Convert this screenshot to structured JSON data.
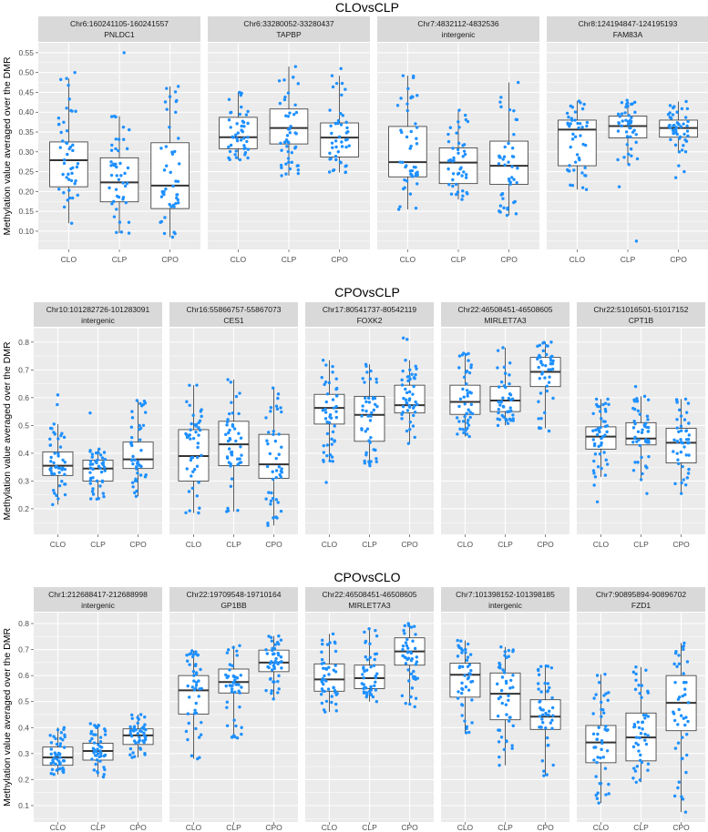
{
  "chart_data": [
    {
      "type": "boxplot",
      "title": "CLOvsCLP",
      "ylabel": "Methylation value averaged over the DMR",
      "categories": [
        "CLO",
        "CLP",
        "CPO"
      ],
      "ylim": [
        0.054,
        0.575
      ],
      "yticks": [
        0.1,
        0.15,
        0.2,
        0.25,
        0.3,
        0.35,
        0.4,
        0.45,
        0.5,
        0.55
      ],
      "ytick_labels": [
        "0.10",
        "0.15",
        "0.20",
        "0.25",
        "0.30",
        "0.35",
        "0.40",
        "0.45",
        "0.50",
        "0.55"
      ],
      "facets": [
        {
          "region": "Chr6:160241105-160241557",
          "gene": "PNLDC1",
          "boxes": [
            {
              "lo": 0.12,
              "q1": 0.212,
              "median": 0.279,
              "q3": 0.325,
              "hi": 0.485,
              "outliers": [
                0.5
              ]
            },
            {
              "lo": 0.095,
              "q1": 0.174,
              "median": 0.223,
              "q3": 0.285,
              "hi": 0.39,
              "outliers": [
                0.55
              ]
            },
            {
              "lo": 0.085,
              "q1": 0.157,
              "median": 0.215,
              "q3": 0.323,
              "hi": 0.465,
              "outliers": []
            }
          ]
        },
        {
          "region": "Chr6:33280052-33280437",
          "gene": "TAPBP",
          "boxes": [
            {
              "lo": 0.28,
              "q1": 0.308,
              "median": 0.337,
              "q3": 0.387,
              "hi": 0.45,
              "outliers": []
            },
            {
              "lo": 0.24,
              "q1": 0.32,
              "median": 0.36,
              "q3": 0.408,
              "hi": 0.515,
              "outliers": []
            },
            {
              "lo": 0.248,
              "q1": 0.287,
              "median": 0.336,
              "q3": 0.373,
              "hi": 0.492,
              "outliers": [
                0.51
              ]
            }
          ]
        },
        {
          "region": "Chr7:4832112-4832536",
          "gene": "intergenic",
          "boxes": [
            {
              "lo": 0.155,
              "q1": 0.237,
              "median": 0.274,
              "q3": 0.364,
              "hi": 0.492,
              "outliers": []
            },
            {
              "lo": 0.18,
              "q1": 0.22,
              "median": 0.273,
              "q3": 0.31,
              "hi": 0.405,
              "outliers": []
            },
            {
              "lo": 0.14,
              "q1": 0.218,
              "median": 0.265,
              "q3": 0.327,
              "hi": 0.475,
              "outliers": []
            }
          ]
        },
        {
          "region": "Chr8:124194847-124195193",
          "gene": "FAM83A",
          "boxes": [
            {
              "lo": 0.205,
              "q1": 0.265,
              "median": 0.356,
              "q3": 0.38,
              "hi": 0.428,
              "outliers": []
            },
            {
              "lo": 0.268,
              "q1": 0.335,
              "median": 0.365,
              "q3": 0.39,
              "hi": 0.43,
              "outliers": [
                0.212,
                0.075
              ]
            },
            {
              "lo": 0.3,
              "q1": 0.337,
              "median": 0.36,
              "q3": 0.38,
              "hi": 0.427,
              "outliers": [
                0.265,
                0.25,
                0.235
              ]
            }
          ]
        }
      ]
    },
    {
      "type": "boxplot",
      "title": "CPOvsCLP",
      "ylabel": "Methylation value averaged over the DMR",
      "categories": [
        "CLO",
        "CLP",
        "CPO"
      ],
      "ylim": [
        0.108,
        0.852
      ],
      "yticks": [
        0.2,
        0.3,
        0.4,
        0.5,
        0.6,
        0.7,
        0.8
      ],
      "ytick_labels": [
        "0.2",
        "0.3",
        "0.4",
        "0.5",
        "0.6",
        "0.7",
        "0.8"
      ],
      "facets": [
        {
          "region": "Chr10:101282726-101283091",
          "gene": "intergenic",
          "boxes": [
            {
              "lo": 0.215,
              "q1": 0.32,
              "median": 0.355,
              "q3": 0.405,
              "hi": 0.505,
              "outliers": [
                0.61,
                0.575
              ]
            },
            {
              "lo": 0.235,
              "q1": 0.3,
              "median": 0.345,
              "q3": 0.375,
              "hi": 0.415,
              "outliers": [
                0.545
              ]
            },
            {
              "lo": 0.245,
              "q1": 0.345,
              "median": 0.378,
              "q3": 0.44,
              "hi": 0.59,
              "outliers": []
            }
          ]
        },
        {
          "region": "Chr16:55866757-55867073",
          "gene": "CES1",
          "boxes": [
            {
              "lo": 0.185,
              "q1": 0.3,
              "median": 0.39,
              "q3": 0.485,
              "hi": 0.645,
              "outliers": []
            },
            {
              "lo": 0.19,
              "q1": 0.355,
              "median": 0.432,
              "q3": 0.515,
              "hi": 0.665,
              "outliers": []
            },
            {
              "lo": 0.14,
              "q1": 0.31,
              "median": 0.36,
              "q3": 0.468,
              "hi": 0.635,
              "outliers": []
            }
          ]
        },
        {
          "region": "Chr17:80541737-80542119",
          "gene": "FOXK2",
          "boxes": [
            {
              "lo": 0.37,
              "q1": 0.505,
              "median": 0.563,
              "q3": 0.612,
              "hi": 0.735,
              "outliers": [
                0.295
              ]
            },
            {
              "lo": 0.355,
              "q1": 0.443,
              "median": 0.538,
              "q3": 0.605,
              "hi": 0.72,
              "outliers": []
            },
            {
              "lo": 0.435,
              "q1": 0.545,
              "median": 0.573,
              "q3": 0.645,
              "hi": 0.735,
              "outliers": [
                0.815,
                0.81
              ]
            }
          ]
        },
        {
          "region": "Chr22:46508451-46508605",
          "gene": "MIRLET7A3",
          "boxes": [
            {
              "lo": 0.46,
              "q1": 0.54,
              "median": 0.585,
              "q3": 0.645,
              "hi": 0.76,
              "outliers": []
            },
            {
              "lo": 0.5,
              "q1": 0.55,
              "median": 0.59,
              "q3": 0.64,
              "hi": 0.78,
              "outliers": []
            },
            {
              "lo": 0.49,
              "q1": 0.64,
              "median": 0.693,
              "q3": 0.745,
              "hi": 0.8,
              "outliers": [
                0.48
              ]
            }
          ]
        },
        {
          "region": "Chr22:51016501-51017152",
          "gene": "CPT1B",
          "boxes": [
            {
              "lo": 0.315,
              "q1": 0.415,
              "median": 0.46,
              "q3": 0.495,
              "hi": 0.595,
              "outliers": [
                0.285,
                0.225
              ]
            },
            {
              "lo": 0.305,
              "q1": 0.43,
              "median": 0.453,
              "q3": 0.51,
              "hi": 0.605,
              "outliers": [
                0.64,
                0.255
              ]
            },
            {
              "lo": 0.255,
              "q1": 0.365,
              "median": 0.438,
              "q3": 0.49,
              "hi": 0.595,
              "outliers": []
            }
          ]
        }
      ]
    },
    {
      "type": "boxplot",
      "title": "CPOvsCLO",
      "ylabel": "Methylation value averaged over the DMR",
      "categories": [
        "CLO",
        "CLP",
        "CPO"
      ],
      "ylim": [
        0.037,
        0.842
      ],
      "yticks": [
        0.1,
        0.2,
        0.3,
        0.4,
        0.5,
        0.6,
        0.7,
        0.8
      ],
      "ytick_labels": [
        "0.1",
        "0.2",
        "0.3",
        "0.4",
        "0.5",
        "0.6",
        "0.7",
        "0.8"
      ],
      "facets": [
        {
          "region": "Chr1:212688417-212688998",
          "gene": "intergenic",
          "boxes": [
            {
              "lo": 0.22,
              "q1": 0.255,
              "median": 0.285,
              "q3": 0.325,
              "hi": 0.4,
              "outliers": []
            },
            {
              "lo": 0.21,
              "q1": 0.275,
              "median": 0.31,
              "q3": 0.34,
              "hi": 0.415,
              "outliers": []
            },
            {
              "lo": 0.285,
              "q1": 0.335,
              "median": 0.37,
              "q3": 0.395,
              "hi": 0.45,
              "outliers": []
            }
          ]
        },
        {
          "region": "Chr22:19709548-19710164",
          "gene": "GP1BB",
          "boxes": [
            {
              "lo": 0.28,
              "q1": 0.452,
              "median": 0.543,
              "q3": 0.6,
              "hi": 0.695,
              "outliers": []
            },
            {
              "lo": 0.36,
              "q1": 0.533,
              "median": 0.575,
              "q3": 0.625,
              "hi": 0.715,
              "outliers": []
            },
            {
              "lo": 0.51,
              "q1": 0.615,
              "median": 0.65,
              "q3": 0.698,
              "hi": 0.752,
              "outliers": []
            }
          ]
        },
        {
          "region": "Chr22:46508451-46508605",
          "gene": "MIRLET7A3",
          "boxes": [
            {
              "lo": 0.46,
              "q1": 0.54,
              "median": 0.585,
              "q3": 0.645,
              "hi": 0.76,
              "outliers": []
            },
            {
              "lo": 0.5,
              "q1": 0.55,
              "median": 0.59,
              "q3": 0.64,
              "hi": 0.78,
              "outliers": []
            },
            {
              "lo": 0.49,
              "q1": 0.64,
              "median": 0.693,
              "q3": 0.745,
              "hi": 0.8,
              "outliers": [
                0.48
              ]
            }
          ]
        },
        {
          "region": "Chr7:101398152-101398185",
          "gene": "intergenic",
          "boxes": [
            {
              "lo": 0.38,
              "q1": 0.517,
              "median": 0.603,
              "q3": 0.648,
              "hi": 0.735,
              "outliers": []
            },
            {
              "lo": 0.255,
              "q1": 0.43,
              "median": 0.53,
              "q3": 0.61,
              "hi": 0.71,
              "outliers": []
            },
            {
              "lo": 0.215,
              "q1": 0.393,
              "median": 0.442,
              "q3": 0.507,
              "hi": 0.637,
              "outliers": []
            }
          ]
        },
        {
          "region": "Chr7:90895894-90896702",
          "gene": "FZD1",
          "boxes": [
            {
              "lo": 0.11,
              "q1": 0.265,
              "median": 0.343,
              "q3": 0.408,
              "hi": 0.605,
              "outliers": []
            },
            {
              "lo": 0.19,
              "q1": 0.272,
              "median": 0.362,
              "q3": 0.456,
              "hi": 0.633,
              "outliers": []
            },
            {
              "lo": 0.075,
              "q1": 0.388,
              "median": 0.495,
              "q3": 0.6,
              "hi": 0.725,
              "outliers": []
            }
          ]
        }
      ]
    }
  ],
  "colors": {
    "point": "#1e90ff",
    "panel": "#ebebeb",
    "strip": "#d9d9d9",
    "grid": "#ffffff",
    "box_line": "#333333"
  }
}
